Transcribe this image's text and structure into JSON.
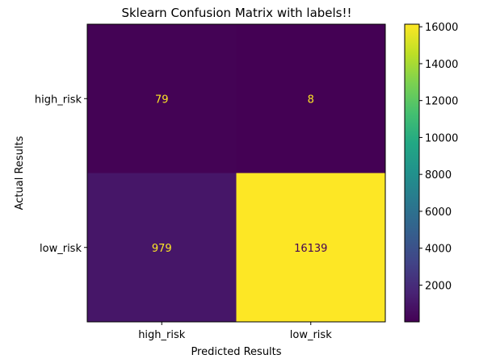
{
  "chart_data": {
    "type": "heatmap",
    "title": "Sklearn Confusion Matrix with labels!!",
    "xlabel": "Predicted Results",
    "ylabel": "Actual Results",
    "x_categories": [
      "high_risk",
      "low_risk"
    ],
    "y_categories": [
      "high_risk",
      "low_risk"
    ],
    "values": [
      [
        79,
        8
      ],
      [
        979,
        16139
      ]
    ],
    "colormap": "viridis",
    "colorbar": {
      "min": 8,
      "max": 16139,
      "ticks": [
        2000,
        4000,
        6000,
        8000,
        10000,
        12000,
        14000,
        16000
      ]
    },
    "text_colors": {
      "on_dark": "#fde725",
      "on_light": "#440154"
    }
  }
}
